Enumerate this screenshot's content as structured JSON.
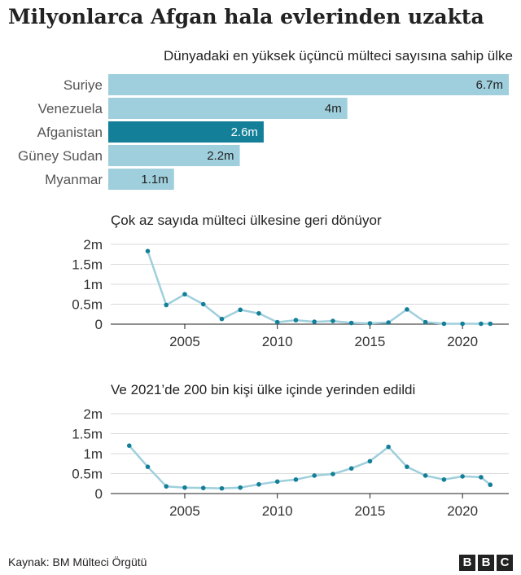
{
  "title": "Milyonlarca Afgan hala evlerinden uzakta",
  "source": "Kaynak: BM Mülteci Örgütü",
  "logo": [
    "B",
    "B",
    "C"
  ],
  "colors": {
    "bar": "#9fcfdc",
    "bar_highlight": "#137f98",
    "line": "#9fcfdc",
    "dot": "#137f98",
    "axis": "#222222",
    "grid": "#d9d9d9"
  },
  "chart_data": [
    {
      "type": "bar",
      "title": "Dünyadaki en yüksek üçüncü mülteci sayısına sahip ülke",
      "categories": [
        "Suriye",
        "Venezuela",
        "Afganistan",
        "Güney Sudan",
        "Myanmar"
      ],
      "values": [
        6.7,
        4,
        2.6,
        2.2,
        1.1
      ],
      "labels": [
        "6.7m",
        "4m",
        "2.6m",
        "2.2m",
        "1.1m"
      ],
      "highlight": "Afganistan",
      "xlim": [
        0,
        6.7
      ]
    },
    {
      "type": "line",
      "title": "Çok az sayıda mülteci ülkesine geri dönüyor",
      "x": [
        2003,
        2004,
        2005,
        2006,
        2007,
        2008,
        2009,
        2010,
        2011,
        2012,
        2013,
        2014,
        2015,
        2016,
        2017,
        2018,
        2019,
        2020,
        2021,
        2021.5
      ],
      "y": [
        1.83,
        0.48,
        0.75,
        0.5,
        0.13,
        0.36,
        0.27,
        0.05,
        0.1,
        0.06,
        0.08,
        0.03,
        0.02,
        0.04,
        0.37,
        0.05,
        0.01,
        0.01,
        0.01,
        0.01
      ],
      "xlim": [
        2001,
        2022.5
      ],
      "ylim": [
        0,
        2
      ],
      "yticks": [
        0,
        0.5,
        1,
        1.5,
        2
      ],
      "ytick_labels": [
        "0",
        "0.5m",
        "1m",
        "1.5m",
        "2m"
      ],
      "xticks": [
        2005,
        2010,
        2015,
        2020
      ],
      "xtick_labels": [
        "2005",
        "2010",
        "2015",
        "2020"
      ],
      "grid": true
    },
    {
      "type": "line",
      "title": "Ve 2021’de 200 bin kişi ülke içinde yerinden edildi",
      "x": [
        2002,
        2003,
        2004,
        2005,
        2006,
        2007,
        2008,
        2009,
        2010,
        2011,
        2012,
        2013,
        2014,
        2015,
        2016,
        2017,
        2018,
        2019,
        2020,
        2021,
        2021.5
      ],
      "y": [
        1.2,
        0.67,
        0.18,
        0.15,
        0.14,
        0.13,
        0.15,
        0.23,
        0.3,
        0.35,
        0.45,
        0.49,
        0.63,
        0.81,
        1.17,
        0.67,
        0.45,
        0.35,
        0.43,
        0.41,
        0.22
      ],
      "xlim": [
        2001,
        2022.5
      ],
      "ylim": [
        0,
        2
      ],
      "yticks": [
        0,
        0.5,
        1,
        1.5,
        2
      ],
      "ytick_labels": [
        "0",
        "0.5m",
        "1m",
        "1.5m",
        "2m"
      ],
      "xticks": [
        2005,
        2010,
        2015,
        2020
      ],
      "xtick_labels": [
        "2005",
        "2010",
        "2015",
        "2020"
      ],
      "grid": true
    }
  ]
}
